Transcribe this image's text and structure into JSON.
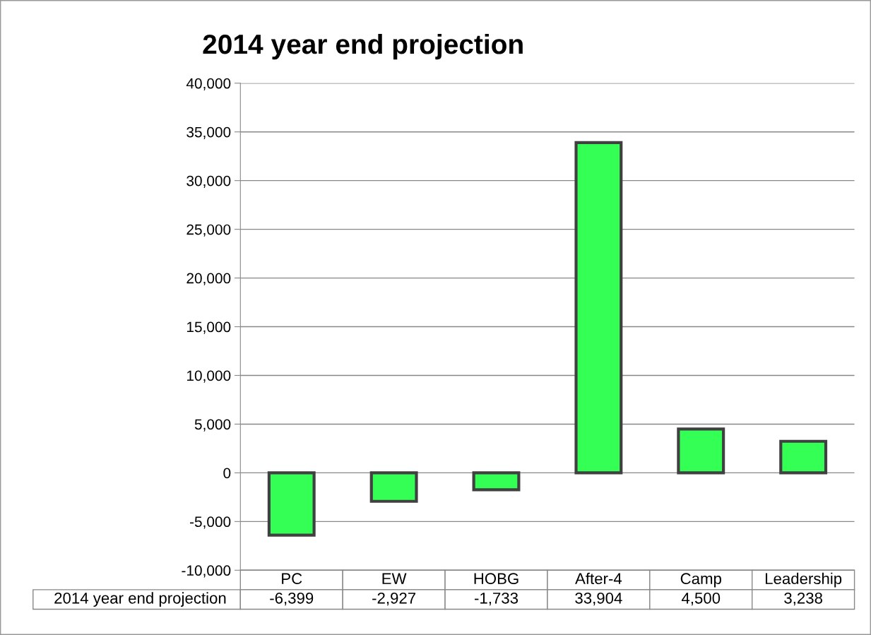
{
  "chart_data": {
    "type": "bar",
    "title": "2014 year end projection",
    "categories": [
      "PC",
      "EW",
      "HOBG",
      "After-4",
      "Camp",
      "Leadership"
    ],
    "series": [
      {
        "name": "2014 year end projection",
        "color": "#33ff55",
        "values": [
          -6399,
          -2927,
          -1733,
          33904,
          4500,
          3238
        ],
        "value_labels": [
          "-6,399",
          "-2,927",
          "-1,733",
          "33,904",
          "4,500",
          "3,238"
        ]
      }
    ],
    "ylim": [
      -10000,
      40000
    ],
    "yticks": [
      {
        "value": -10000,
        "label": "-10,000"
      },
      {
        "value": -5000,
        "label": "-5,000"
      },
      0,
      {
        "value": 5000,
        "label": "5,000"
      },
      {
        "value": 10000,
        "label": "10,000"
      },
      {
        "value": 15000,
        "label": "15,000"
      },
      {
        "value": 20000,
        "label": "20,000"
      },
      {
        "value": 25000,
        "label": "25,000"
      },
      {
        "value": 30000,
        "label": "30,000"
      },
      {
        "value": 35000,
        "label": "35,000"
      },
      {
        "value": 40000,
        "label": "40,000"
      }
    ],
    "grid": "y",
    "legend": false
  }
}
